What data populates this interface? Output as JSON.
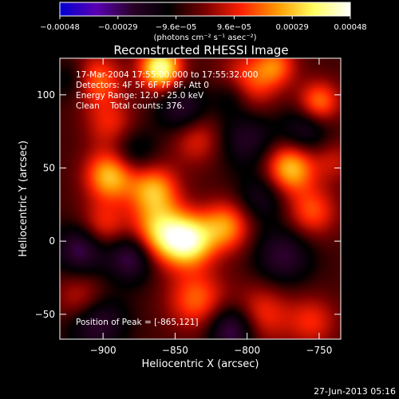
{
  "chart_data": {
    "type": "heatmap",
    "title": "Reconstructed RHESSI Image",
    "xlabel": "Heliocentric X (arcsec)",
    "ylabel": "Heliocentric Y (arcsec)",
    "xlim": [
      -930,
      -735
    ],
    "ylim": [
      -67,
      125
    ],
    "x_ticks": [
      {
        "value": -900,
        "label": "−900"
      },
      {
        "value": -850,
        "label": "−850"
      },
      {
        "value": -800,
        "label": "−800"
      },
      {
        "value": -750,
        "label": "−750"
      }
    ],
    "y_ticks": [
      {
        "value": -50,
        "label": "−50"
      },
      {
        "value": 0,
        "label": "0"
      },
      {
        "value": 50,
        "label": "50"
      },
      {
        "value": 100,
        "label": "100"
      }
    ],
    "colorbar": {
      "range": [
        -0.00048,
        0.00048
      ],
      "tick_labels": [
        "−0.00048",
        "−0.00029",
        "−9.6e−05",
        "9.6e−05",
        "0.00029",
        "0.00048"
      ],
      "unit_label": "(photons cm⁻² s⁻¹ asec⁻²)",
      "stops": [
        "#0000d2",
        "#5a00b4",
        "#2a0028",
        "#000000",
        "#7a0000",
        "#ff2000",
        "#ff9a00",
        "#ffff60",
        "#ffffff"
      ]
    },
    "annotations": [
      "17-Mar-2004 17:55:00.000 to 17:55:32.000",
      "Detectors: 4F 5F 6F 7F 8F, Att 0",
      "Energy Range: 12.0 - 25.0 keV",
      "Clean    Total counts: 376."
    ],
    "peak_label": "Position of Peak = [-865,121]",
    "peak": {
      "x": -865,
      "y": 121
    },
    "blobs": [
      {
        "x": -860,
        "y": 118,
        "v": 1.0,
        "s": 10
      },
      {
        "x": -905,
        "y": 110,
        "v": 0.55,
        "s": 12
      },
      {
        "x": -800,
        "y": 108,
        "v": 0.5,
        "s": 14
      },
      {
        "x": -780,
        "y": 120,
        "v": 0.45,
        "s": 10
      },
      {
        "x": -750,
        "y": 95,
        "v": 0.55,
        "s": 10
      },
      {
        "x": -895,
        "y": 80,
        "v": 0.35,
        "s": 12
      },
      {
        "x": -835,
        "y": 70,
        "v": 0.35,
        "s": 12
      },
      {
        "x": -895,
        "y": 45,
        "v": 0.75,
        "s": 12
      },
      {
        "x": -865,
        "y": 35,
        "v": 0.65,
        "s": 12
      },
      {
        "x": -770,
        "y": 50,
        "v": 0.75,
        "s": 12
      },
      {
        "x": -755,
        "y": 20,
        "v": 0.45,
        "s": 12
      },
      {
        "x": -860,
        "y": 5,
        "v": 0.8,
        "s": 14
      },
      {
        "x": -840,
        "y": 0,
        "v": 0.85,
        "s": 12
      },
      {
        "x": -815,
        "y": 10,
        "v": 0.6,
        "s": 12
      },
      {
        "x": -900,
        "y": 10,
        "v": 0.4,
        "s": 12
      },
      {
        "x": -835,
        "y": -40,
        "v": 0.5,
        "s": 14
      },
      {
        "x": -790,
        "y": -50,
        "v": 0.4,
        "s": 14
      },
      {
        "x": -915,
        "y": -40,
        "v": 0.35,
        "s": 12
      },
      {
        "x": -755,
        "y": -55,
        "v": 0.35,
        "s": 12
      },
      {
        "x": -740,
        "y": 55,
        "v": 0.25,
        "s": 10
      },
      {
        "x": -800,
        "y": 70,
        "v": -0.35,
        "s": 14
      },
      {
        "x": -845,
        "y": 90,
        "v": -0.4,
        "s": 12
      },
      {
        "x": -915,
        "y": -5,
        "v": -0.5,
        "s": 12
      },
      {
        "x": -880,
        "y": -10,
        "v": -0.55,
        "s": 12
      },
      {
        "x": -905,
        "y": -55,
        "v": -0.45,
        "s": 14
      },
      {
        "x": -810,
        "y": -60,
        "v": -0.55,
        "s": 12
      },
      {
        "x": -775,
        "y": -10,
        "v": -0.4,
        "s": 14
      },
      {
        "x": -760,
        "y": 75,
        "v": -0.35,
        "s": 12
      },
      {
        "x": -790,
        "y": 30,
        "v": -0.3,
        "s": 12
      },
      {
        "x": -810,
        "y": 100,
        "v": -0.35,
        "s": 10
      },
      {
        "x": -880,
        "y": 60,
        "v": -0.3,
        "s": 12
      },
      {
        "x": -920,
        "y": 110,
        "v": -0.3,
        "s": 10
      }
    ]
  },
  "footer": {
    "timestamp": "27-Jun-2013 05:16"
  }
}
